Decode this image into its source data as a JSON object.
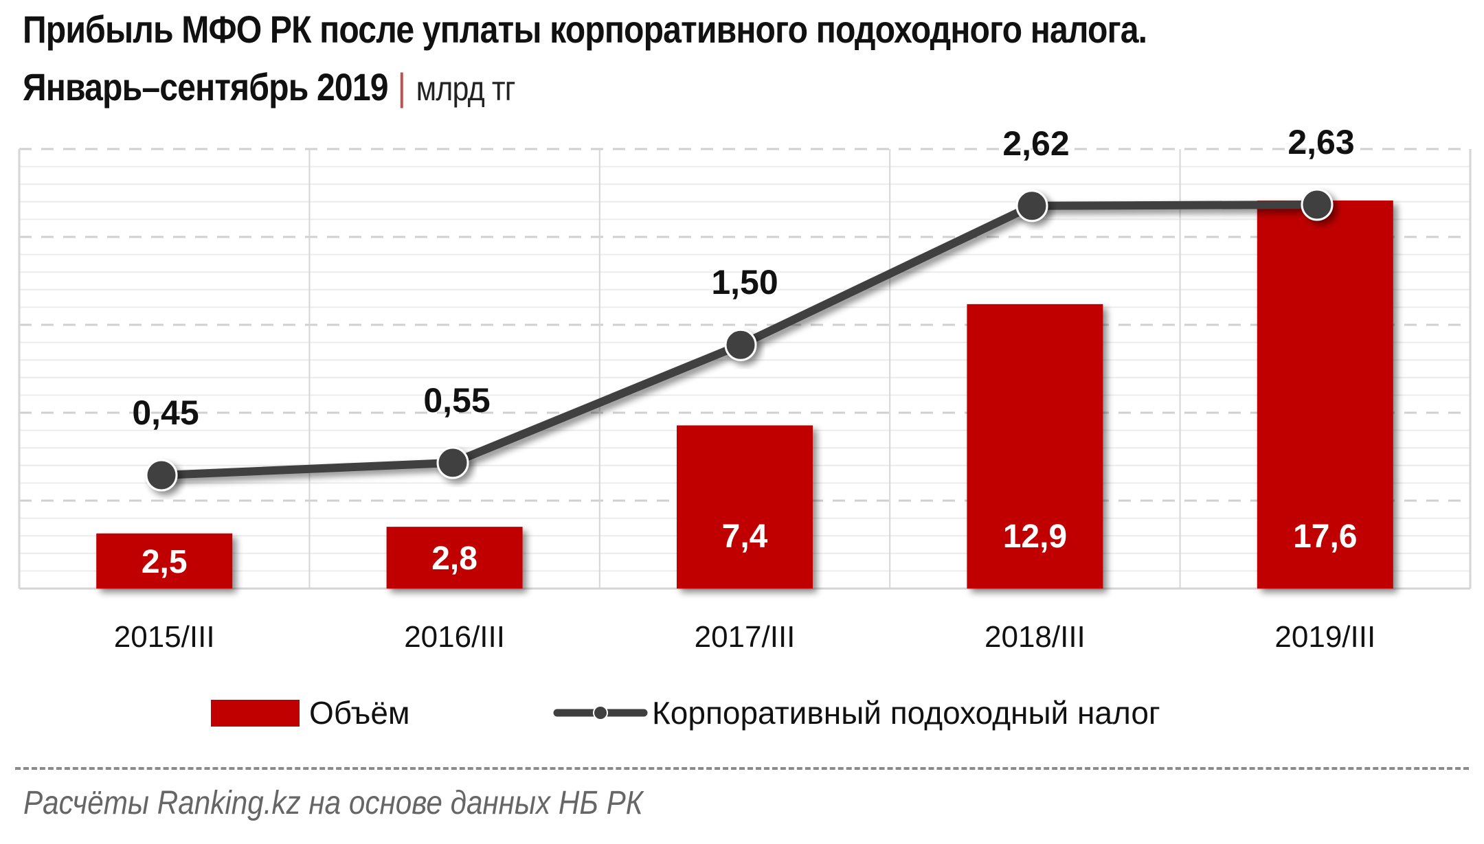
{
  "title": {
    "line1": "Прибыль МФО РК после уплаты корпоративного подоходного налога.",
    "line2": "Январь–сентябрь 2019",
    "separator": "|",
    "unit": "млрд тг"
  },
  "legend": {
    "bar_label": "Объём",
    "line_label": "Корпоративный подоходный налог"
  },
  "footer": {
    "source": "Расчёты Ranking.kz на основе данных  НБ РК"
  },
  "colors": {
    "bar": "#c00000",
    "line": "#3f3f3f",
    "marker_fill": "#3f3f3f",
    "marker_stroke": "#ffffff",
    "grid_major": "#d0d0d0",
    "grid_minor": "#ececec",
    "bar_label": "#ffffff",
    "line_label": "#111111",
    "footer": "#666666",
    "separator": "#c0504d"
  },
  "chart_data": {
    "type": "bar",
    "title": "Прибыль МФО РК после уплаты корпоративного подоходного налога. Январь–сентябрь 2019 | млрд тг",
    "xlabel": "",
    "ylabel": "млрд тг",
    "categories": [
      "2015/III",
      "2016/III",
      "2017/III",
      "2018/III",
      "2019/III"
    ],
    "series": [
      {
        "name": "Объём",
        "type": "bar",
        "values": [
          2.5,
          2.8,
          7.4,
          12.9,
          17.6
        ],
        "labels": [
          "2,5",
          "2,8",
          "7,4",
          "12,9",
          "17,6"
        ],
        "axis": "primary"
      },
      {
        "name": "Корпоративный подоходный налог",
        "type": "line",
        "values": [
          0.45,
          0.55,
          1.5,
          2.62,
          2.63
        ],
        "labels": [
          "0,45",
          "0,55",
          "1,50",
          "2,62",
          "2,63"
        ],
        "axis": "secondary"
      }
    ],
    "axes_hidden": true,
    "grid": true,
    "legend_position": "bottom"
  }
}
